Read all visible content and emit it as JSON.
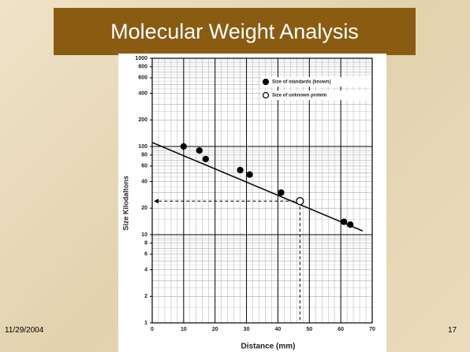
{
  "slide": {
    "title": "Molecular Weight Analysis",
    "date": "11/29/2004",
    "number": "17"
  },
  "chart_data": {
    "type": "scatter",
    "xlabel": "Distance (mm)",
    "ylabel": "Size Kilodaltons",
    "xlim": [
      0,
      70
    ],
    "xticks": [
      0,
      10,
      20,
      30,
      40,
      50,
      60,
      70
    ],
    "ylim": [
      1,
      1000
    ],
    "yscale": "log",
    "yticks": [
      1,
      2,
      4,
      6,
      8,
      10,
      20,
      40,
      60,
      80,
      100,
      200,
      400,
      600,
      800,
      1000
    ],
    "grid": true,
    "legend": "upper right",
    "series": [
      {
        "name": "Size of standards (known)",
        "color": "#000000",
        "marker": "filled",
        "x": [
          10,
          15,
          17,
          28,
          31,
          41,
          61,
          63
        ],
        "values": [
          100,
          90,
          72,
          54,
          48,
          30,
          14,
          13
        ]
      },
      {
        "name": "Size of unknown protein",
        "color": "#000000",
        "marker": "open",
        "x": [
          47
        ],
        "values": [
          24
        ]
      }
    ],
    "trendline": {
      "x": [
        0,
        67
      ],
      "values": [
        111,
        11
      ]
    }
  }
}
